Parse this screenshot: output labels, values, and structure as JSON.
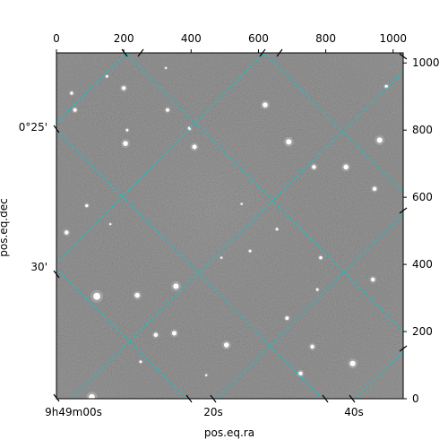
{
  "chart_data": {
    "type": "scatter",
    "title": "",
    "xlabel": "pos.eq.ra",
    "ylabel": "pos.eq.dec",
    "pixel_axes": {
      "xlim": [
        0,
        1030
      ],
      "ylim": [
        0,
        1030
      ],
      "x_ticks": [
        0,
        200,
        400,
        600,
        800,
        1000
      ],
      "y_ticks": [
        0,
        200,
        400,
        600,
        800,
        1000
      ]
    },
    "world_axes": {
      "ra_tick_labels": [
        "9h49m00s",
        "20s",
        "40s"
      ],
      "dec_tick_labels": [
        "0°25'",
        "30'"
      ]
    },
    "grid": true,
    "grid_color": "#00cccc",
    "image_colormap": "gray",
    "stars": [
      {
        "x": 120,
        "y": 305,
        "v": 14
      },
      {
        "x": 240,
        "y": 308,
        "v": 10
      },
      {
        "x": 355,
        "y": 335,
        "v": 11
      },
      {
        "x": 350,
        "y": 195,
        "v": 9
      },
      {
        "x": 295,
        "y": 190,
        "v": 8
      },
      {
        "x": 505,
        "y": 160,
        "v": 10
      },
      {
        "x": 760,
        "y": 155,
        "v": 8
      },
      {
        "x": 880,
        "y": 105,
        "v": 11
      },
      {
        "x": 725,
        "y": 75,
        "v": 8
      },
      {
        "x": 105,
        "y": 5,
        "v": 12
      },
      {
        "x": 685,
        "y": 240,
        "v": 7
      },
      {
        "x": 785,
        "y": 420,
        "v": 6
      },
      {
        "x": 940,
        "y": 355,
        "v": 8
      },
      {
        "x": 30,
        "y": 495,
        "v": 8
      },
      {
        "x": 90,
        "y": 575,
        "v": 6
      },
      {
        "x": 205,
        "y": 760,
        "v": 10
      },
      {
        "x": 410,
        "y": 750,
        "v": 9
      },
      {
        "x": 690,
        "y": 765,
        "v": 11
      },
      {
        "x": 765,
        "y": 690,
        "v": 8
      },
      {
        "x": 860,
        "y": 690,
        "v": 10
      },
      {
        "x": 945,
        "y": 625,
        "v": 8
      },
      {
        "x": 960,
        "y": 770,
        "v": 11
      },
      {
        "x": 620,
        "y": 875,
        "v": 10
      },
      {
        "x": 330,
        "y": 860,
        "v": 7
      },
      {
        "x": 200,
        "y": 925,
        "v": 8
      },
      {
        "x": 55,
        "y": 860,
        "v": 7
      },
      {
        "x": 45,
        "y": 910,
        "v": 6
      },
      {
        "x": 210,
        "y": 800,
        "v": 5
      },
      {
        "x": 395,
        "y": 805,
        "v": 6
      },
      {
        "x": 655,
        "y": 505,
        "v": 5
      },
      {
        "x": 575,
        "y": 440,
        "v": 5
      },
      {
        "x": 490,
        "y": 420,
        "v": 4
      },
      {
        "x": 775,
        "y": 325,
        "v": 5
      },
      {
        "x": 550,
        "y": 580,
        "v": 4
      },
      {
        "x": 160,
        "y": 520,
        "v": 4
      },
      {
        "x": 250,
        "y": 110,
        "v": 5
      },
      {
        "x": 445,
        "y": 70,
        "v": 4
      },
      {
        "x": 980,
        "y": 930,
        "v": 6
      },
      {
        "x": 150,
        "y": 960,
        "v": 5
      },
      {
        "x": 325,
        "y": 985,
        "v": 4
      }
    ]
  }
}
